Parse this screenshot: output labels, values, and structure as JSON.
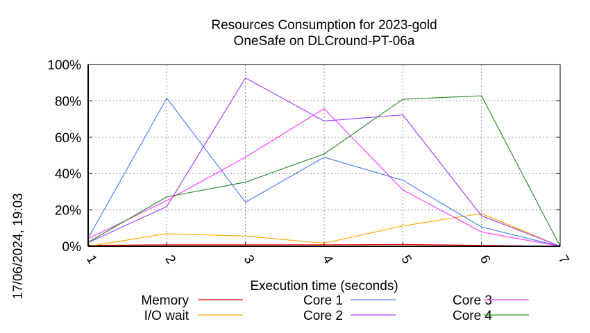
{
  "chart_data": {
    "type": "line",
    "title": [
      "Resources Consumption for 2023-gold",
      "OneSafe on DLCround-PT-06a"
    ],
    "xlabel": "Execution time (seconds)",
    "ylabel": "",
    "side_label": "17/06/2024, 19:03",
    "x": [
      1,
      2,
      3,
      4,
      5,
      6,
      7
    ],
    "xlim": [
      1,
      7
    ],
    "ylim": [
      0,
      100
    ],
    "yticks": [
      0,
      20,
      40,
      60,
      80,
      100
    ],
    "ytick_labels": [
      "0%",
      "20%",
      "40%",
      "60%",
      "80%",
      "100%"
    ],
    "xtick_labels": [
      "1",
      "2",
      "3",
      "4",
      "5",
      "6",
      "7"
    ],
    "grid": true,
    "legend_position": "bottom",
    "series": [
      {
        "name": "Memory",
        "color": "#ff0000",
        "values": [
          0.5,
          0.8,
          0.8,
          0.8,
          1.0,
          0.5,
          0
        ]
      },
      {
        "name": "I/O wait",
        "color": "#ffa500",
        "values": [
          0,
          6.9,
          5.6,
          1.7,
          11.2,
          18.0,
          0
        ]
      },
      {
        "name": "Core 1",
        "color": "#4d7fff",
        "values": [
          4.5,
          81.5,
          24.2,
          49.0,
          36.3,
          10.6,
          0
        ]
      },
      {
        "name": "Core 2",
        "color": "#a040ff",
        "values": [
          2.0,
          21.9,
          92.6,
          68.9,
          72.3,
          16.8,
          0
        ]
      },
      {
        "name": "Core 3",
        "color": "#ff40ff",
        "values": [
          4.1,
          25.2,
          49.0,
          75.7,
          31.0,
          7.9,
          0
        ]
      },
      {
        "name": "Core 4",
        "color": "#2e8b2e",
        "values": [
          2.2,
          27.2,
          35.3,
          50.8,
          80.9,
          82.8,
          0
        ]
      }
    ]
  }
}
